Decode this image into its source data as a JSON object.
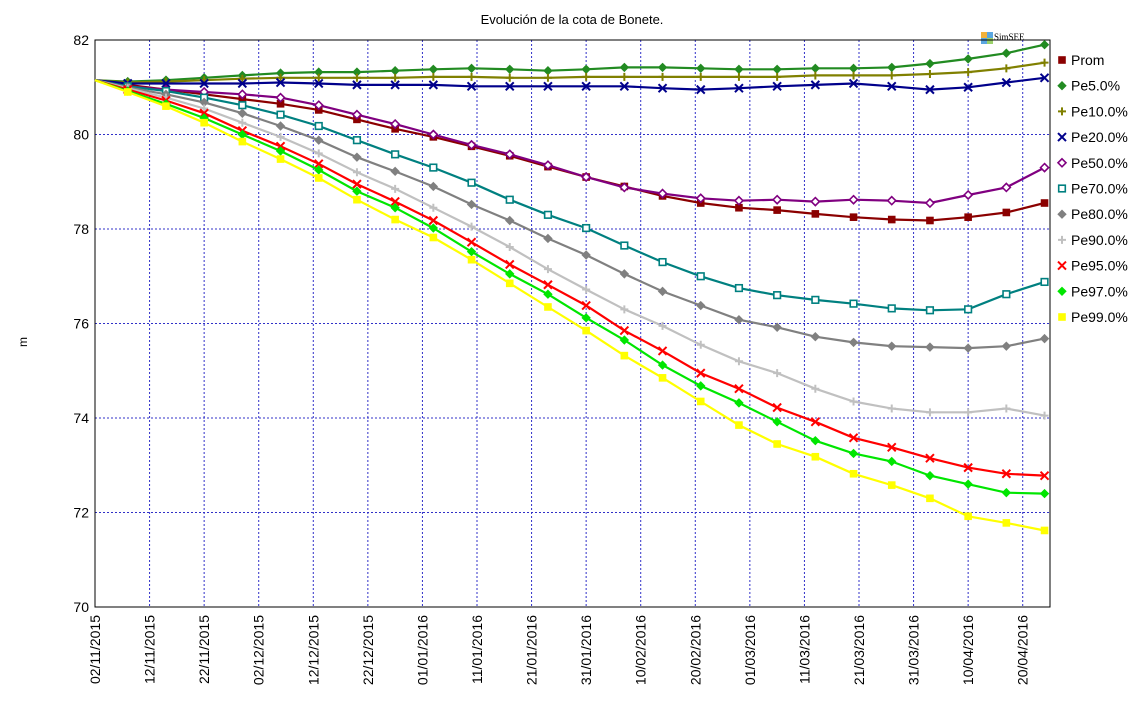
{
  "chart_data": {
    "type": "line",
    "title": "Evolución de la cota de Bonete.",
    "ylabel": "m",
    "xlabel": "",
    "ylim": [
      70,
      82
    ],
    "y_ticks": [
      70,
      72,
      74,
      76,
      78,
      80,
      82
    ],
    "x_ticks": [
      "02/11/2015",
      "12/11/2015",
      "22/11/2015",
      "02/12/2015",
      "12/12/2015",
      "22/12/2015",
      "01/01/2016",
      "11/01/2016",
      "21/01/2016",
      "31/01/2016",
      "10/02/2016",
      "20/02/2016",
      "01/03/2016",
      "11/03/2016",
      "21/03/2016",
      "31/03/2016",
      "10/04/2016",
      "20/04/2016"
    ],
    "x": [
      "02/11/2015",
      "08/11/2015",
      "15/11/2015",
      "22/11/2015",
      "29/11/2015",
      "06/12/2015",
      "13/12/2015",
      "20/12/2015",
      "27/12/2015",
      "03/01/2016",
      "10/01/2016",
      "17/01/2016",
      "24/01/2016",
      "31/01/2016",
      "07/02/2016",
      "14/02/2016",
      "21/02/2016",
      "28/02/2016",
      "06/03/2016",
      "13/03/2016",
      "20/03/2016",
      "27/03/2016",
      "03/04/2016",
      "10/04/2016",
      "17/04/2016",
      "24/04/2016"
    ],
    "grid": true,
    "legend_position": "right",
    "series": [
      {
        "name": "Prom",
        "color": "#8b0000",
        "marker": "square",
        "values": [
          81.15,
          81.05,
          80.95,
          80.85,
          80.75,
          80.65,
          80.52,
          80.32,
          80.12,
          79.95,
          79.75,
          79.55,
          79.32,
          79.1,
          78.9,
          78.7,
          78.55,
          78.45,
          78.4,
          78.32,
          78.25,
          78.2,
          78.18,
          78.25,
          78.35,
          78.55
        ]
      },
      {
        "name": "Pe5.0%",
        "color": "#228b22",
        "marker": "diamond",
        "values": [
          81.15,
          81.12,
          81.15,
          81.2,
          81.25,
          81.3,
          81.32,
          81.32,
          81.35,
          81.38,
          81.4,
          81.38,
          81.35,
          81.38,
          81.42,
          81.42,
          81.4,
          81.38,
          81.38,
          81.4,
          81.4,
          81.42,
          81.5,
          81.6,
          81.72,
          81.9
        ]
      },
      {
        "name": "Pe10.0%",
        "color": "#808000",
        "marker": "plus",
        "values": [
          81.15,
          81.1,
          81.12,
          81.15,
          81.18,
          81.2,
          81.2,
          81.2,
          81.2,
          81.22,
          81.22,
          81.2,
          81.2,
          81.22,
          81.22,
          81.22,
          81.22,
          81.22,
          81.22,
          81.25,
          81.25,
          81.25,
          81.28,
          81.32,
          81.4,
          81.52
        ]
      },
      {
        "name": "Pe20.0%",
        "color": "#00008b",
        "marker": "x",
        "values": [
          81.15,
          81.08,
          81.08,
          81.08,
          81.08,
          81.1,
          81.08,
          81.05,
          81.05,
          81.05,
          81.02,
          81.02,
          81.02,
          81.02,
          81.02,
          80.98,
          80.95,
          80.98,
          81.02,
          81.05,
          81.08,
          81.02,
          80.95,
          81.0,
          81.1,
          81.2
        ]
      },
      {
        "name": "Pe50.0%",
        "color": "#800080",
        "marker": "diamond-open",
        "values": [
          81.15,
          81.02,
          80.95,
          80.9,
          80.85,
          80.78,
          80.62,
          80.42,
          80.22,
          80.0,
          79.78,
          79.58,
          79.35,
          79.1,
          78.88,
          78.75,
          78.65,
          78.6,
          78.62,
          78.58,
          78.62,
          78.6,
          78.55,
          78.72,
          78.88,
          79.3
        ]
      },
      {
        "name": "Pe70.0%",
        "color": "#008080",
        "marker": "square-open",
        "values": [
          81.15,
          81.02,
          80.92,
          80.78,
          80.62,
          80.42,
          80.18,
          79.88,
          79.58,
          79.3,
          78.98,
          78.62,
          78.3,
          78.02,
          77.65,
          77.3,
          77.0,
          76.75,
          76.6,
          76.5,
          76.42,
          76.32,
          76.28,
          76.3,
          76.62,
          76.88
        ]
      },
      {
        "name": "Pe80.0%",
        "color": "#808080",
        "marker": "diamond",
        "values": [
          81.15,
          81.0,
          80.85,
          80.68,
          80.45,
          80.18,
          79.88,
          79.52,
          79.22,
          78.9,
          78.52,
          78.18,
          77.8,
          77.45,
          77.05,
          76.68,
          76.38,
          76.08,
          75.92,
          75.72,
          75.6,
          75.52,
          75.5,
          75.48,
          75.52,
          75.68
        ]
      },
      {
        "name": "Pe90.0%",
        "color": "#c0c0c0",
        "marker": "plus",
        "values": [
          81.15,
          80.98,
          80.78,
          80.55,
          80.25,
          79.95,
          79.6,
          79.2,
          78.85,
          78.45,
          78.05,
          77.62,
          77.15,
          76.72,
          76.3,
          75.95,
          75.55,
          75.2,
          74.95,
          74.62,
          74.35,
          74.2,
          74.12,
          74.12,
          74.2,
          74.05
        ]
      },
      {
        "name": "Pe95.0%",
        "color": "#ff0000",
        "marker": "x",
        "values": [
          81.15,
          80.95,
          80.72,
          80.45,
          80.08,
          79.75,
          79.38,
          78.95,
          78.58,
          78.18,
          77.72,
          77.25,
          76.82,
          76.38,
          75.85,
          75.42,
          74.95,
          74.62,
          74.22,
          73.92,
          73.58,
          73.38,
          73.15,
          72.95,
          72.82,
          72.78
        ]
      },
      {
        "name": "Pe97.0%",
        "color": "#00e600",
        "marker": "diamond",
        "values": [
          81.15,
          80.92,
          80.65,
          80.35,
          80.0,
          79.65,
          79.25,
          78.8,
          78.45,
          78.02,
          77.52,
          77.05,
          76.62,
          76.12,
          75.65,
          75.12,
          74.68,
          74.32,
          73.92,
          73.52,
          73.25,
          73.08,
          72.78,
          72.6,
          72.42,
          72.4
        ]
      },
      {
        "name": "Pe99.0%",
        "color": "#ffff00",
        "marker": "square",
        "values": [
          81.15,
          80.9,
          80.6,
          80.25,
          79.85,
          79.48,
          79.08,
          78.62,
          78.2,
          77.82,
          77.35,
          76.85,
          76.35,
          75.85,
          75.32,
          74.85,
          74.35,
          73.85,
          73.45,
          73.18,
          72.82,
          72.58,
          72.3,
          71.92,
          71.78,
          71.62
        ]
      }
    ]
  },
  "logo": {
    "text": "SimSEE"
  }
}
